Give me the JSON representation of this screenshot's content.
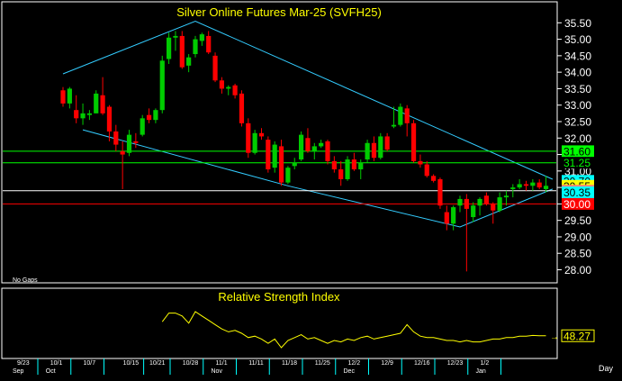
{
  "chart_data": [
    {
      "type": "candlestick",
      "title": "Silver Online Futures Mar-25  (SVFH25)",
      "note": "No Gaps",
      "y_ticks": [
        "35.50",
        "35.00",
        "34.50",
        "34.00",
        "33.50",
        "33.00",
        "32.50",
        "32.00",
        "31.50",
        "31.00",
        "30.50",
        "30.00",
        "29.50",
        "29.00",
        "28.50",
        "28.00"
      ],
      "ylim": [
        27.85,
        35.7
      ],
      "grid": false,
      "x_tick_labels": [
        "9/23",
        "10/1",
        "10/7",
        "10/15",
        "10/21",
        "10/28",
        "11/1",
        "11/11",
        "11/18",
        "11/25",
        "12/2",
        "12/9",
        "12/16",
        "12/23",
        "1/2"
      ],
      "x_tick_index": [
        0,
        5,
        10,
        16,
        20,
        25,
        30,
        35,
        40,
        45,
        50,
        55,
        60,
        65,
        70
      ],
      "month_labels": [
        "Sep",
        "Oct",
        "Nov",
        "Dec",
        "Jan"
      ],
      "month_index": [
        0,
        5,
        30,
        50,
        70
      ],
      "x_axis_unit": "Day",
      "candles": [
        {
          "o": 33.45,
          "h": 33.55,
          "l": 32.95,
          "c": 33.05
        },
        {
          "o": 33.05,
          "h": 33.55,
          "l": 32.9,
          "c": 33.5
        },
        {
          "o": 32.85,
          "h": 33.3,
          "l": 32.45,
          "c": 32.6
        },
        {
          "o": 32.6,
          "h": 33.05,
          "l": 32.4,
          "c": 32.75
        },
        {
          "o": 32.7,
          "h": 32.85,
          "l": 32.55,
          "c": 32.75
        },
        {
          "o": 32.75,
          "h": 33.45,
          "l": 32.75,
          "c": 33.35
        },
        {
          "o": 33.3,
          "h": 33.85,
          "l": 32.7,
          "c": 32.75
        },
        {
          "o": 32.95,
          "h": 33.0,
          "l": 31.9,
          "c": 32.2
        },
        {
          "o": 32.2,
          "h": 32.4,
          "l": 31.6,
          "c": 31.8
        },
        {
          "o": 31.6,
          "h": 31.9,
          "l": 30.45,
          "c": 31.5
        },
        {
          "o": 31.55,
          "h": 32.25,
          "l": 31.45,
          "c": 32.1
        },
        {
          "o": 31.9,
          "h": 32.15,
          "l": 31.7,
          "c": 31.85
        },
        {
          "o": 32.1,
          "h": 32.7,
          "l": 32.05,
          "c": 32.6
        },
        {
          "o": 32.7,
          "h": 32.9,
          "l": 32.45,
          "c": 32.55
        },
        {
          "o": 32.55,
          "h": 32.9,
          "l": 32.45,
          "c": 32.85
        },
        {
          "o": 32.85,
          "h": 34.5,
          "l": 32.75,
          "c": 34.35
        },
        {
          "o": 34.4,
          "h": 35.2,
          "l": 34.25,
          "c": 35.05
        },
        {
          "o": 35.05,
          "h": 35.25,
          "l": 34.65,
          "c": 35.1
        },
        {
          "o": 35.1,
          "h": 35.25,
          "l": 34.1,
          "c": 34.15
        },
        {
          "o": 34.2,
          "h": 34.55,
          "l": 34.0,
          "c": 34.45
        },
        {
          "o": 34.55,
          "h": 35.1,
          "l": 34.45,
          "c": 35.0
        },
        {
          "o": 34.95,
          "h": 35.2,
          "l": 34.8,
          "c": 35.15
        },
        {
          "o": 35.1,
          "h": 35.25,
          "l": 34.55,
          "c": 34.6
        },
        {
          "o": 34.5,
          "h": 34.6,
          "l": 33.7,
          "c": 33.75
        },
        {
          "o": 33.75,
          "h": 33.85,
          "l": 33.35,
          "c": 33.5
        },
        {
          "o": 33.5,
          "h": 33.6,
          "l": 33.3,
          "c": 33.55
        },
        {
          "o": 33.6,
          "h": 33.65,
          "l": 33.2,
          "c": 33.3
        },
        {
          "o": 33.35,
          "h": 33.45,
          "l": 32.35,
          "c": 32.45
        },
        {
          "o": 32.45,
          "h": 32.6,
          "l": 31.4,
          "c": 31.55
        },
        {
          "o": 31.55,
          "h": 32.25,
          "l": 31.5,
          "c": 32.15
        },
        {
          "o": 32.15,
          "h": 32.3,
          "l": 31.95,
          "c": 32.05
        },
        {
          "o": 31.95,
          "h": 32.05,
          "l": 30.95,
          "c": 31.05
        },
        {
          "o": 31.1,
          "h": 31.9,
          "l": 30.95,
          "c": 31.8
        },
        {
          "o": 31.75,
          "h": 31.95,
          "l": 30.55,
          "c": 30.65
        },
        {
          "o": 30.65,
          "h": 31.15,
          "l": 30.6,
          "c": 31.1
        },
        {
          "o": 31.15,
          "h": 31.4,
          "l": 31.05,
          "c": 31.25
        },
        {
          "o": 31.35,
          "h": 32.2,
          "l": 31.3,
          "c": 32.1
        },
        {
          "o": 32.0,
          "h": 32.3,
          "l": 31.55,
          "c": 31.6
        },
        {
          "o": 31.6,
          "h": 31.85,
          "l": 31.35,
          "c": 31.75
        },
        {
          "o": 31.75,
          "h": 31.95,
          "l": 31.7,
          "c": 31.85
        },
        {
          "o": 31.9,
          "h": 31.95,
          "l": 31.2,
          "c": 31.3
        },
        {
          "o": 31.3,
          "h": 31.45,
          "l": 30.95,
          "c": 31.05
        },
        {
          "o": 31.05,
          "h": 31.3,
          "l": 30.55,
          "c": 30.75
        },
        {
          "o": 30.75,
          "h": 31.45,
          "l": 30.7,
          "c": 31.35
        },
        {
          "o": 31.35,
          "h": 31.55,
          "l": 31.0,
          "c": 31.05
        },
        {
          "o": 31.05,
          "h": 31.35,
          "l": 30.75,
          "c": 31.25
        },
        {
          "o": 31.35,
          "h": 31.95,
          "l": 31.25,
          "c": 31.85
        },
        {
          "o": 31.85,
          "h": 32.05,
          "l": 31.3,
          "c": 31.4
        },
        {
          "o": 31.4,
          "h": 32.15,
          "l": 31.35,
          "c": 32.05
        },
        {
          "o": 32.05,
          "h": 32.15,
          "l": 31.6,
          "c": 31.65
        },
        {
          "o": 32.35,
          "h": 32.95,
          "l": 32.3,
          "c": 32.4
        },
        {
          "o": 32.4,
          "h": 33.05,
          "l": 32.35,
          "c": 32.95
        },
        {
          "o": 32.9,
          "h": 33.0,
          "l": 32.05,
          "c": 32.45
        },
        {
          "o": 32.45,
          "h": 32.55,
          "l": 31.25,
          "c": 31.3
        },
        {
          "o": 31.3,
          "h": 31.5,
          "l": 31.1,
          "c": 31.2
        },
        {
          "o": 31.2,
          "h": 31.3,
          "l": 30.8,
          "c": 30.85
        },
        {
          "o": 30.85,
          "h": 30.9,
          "l": 30.65,
          "c": 30.7
        },
        {
          "o": 30.75,
          "h": 30.8,
          "l": 29.85,
          "c": 29.95
        },
        {
          "o": 29.75,
          "h": 29.95,
          "l": 29.2,
          "c": 29.4
        },
        {
          "o": 29.4,
          "h": 29.95,
          "l": 29.2,
          "c": 29.9
        },
        {
          "o": 29.95,
          "h": 30.25,
          "l": 29.75,
          "c": 30.15
        },
        {
          "o": 30.15,
          "h": 30.3,
          "l": 27.95,
          "c": 29.85
        },
        {
          "o": 29.6,
          "h": 30.05,
          "l": 29.45,
          "c": 29.95
        },
        {
          "o": 29.95,
          "h": 30.2,
          "l": 29.65,
          "c": 30.15
        },
        {
          "o": 30.25,
          "h": 30.35,
          "l": 29.95,
          "c": 30.0
        },
        {
          "o": 30.0,
          "h": 30.05,
          "l": 29.4,
          "c": 29.8
        },
        {
          "o": 29.8,
          "h": 30.35,
          "l": 29.75,
          "c": 30.2
        },
        {
          "o": 30.2,
          "h": 30.4,
          "l": 29.95,
          "c": 30.25
        },
        {
          "o": 30.45,
          "h": 30.6,
          "l": 30.2,
          "c": 30.5
        },
        {
          "o": 30.5,
          "h": 30.75,
          "l": 30.45,
          "c": 30.6
        },
        {
          "o": 30.6,
          "h": 30.7,
          "l": 30.4,
          "c": 30.55
        },
        {
          "o": 30.55,
          "h": 30.75,
          "l": 30.4,
          "c": 30.65
        },
        {
          "o": 30.65,
          "h": 30.75,
          "l": 30.45,
          "c": 30.5
        },
        {
          "o": 30.45,
          "h": 30.85,
          "l": 30.35,
          "c": 30.55
        }
      ],
      "horizontal_levels": [
        {
          "label": "31.60",
          "value": 31.6,
          "color": "#00ff00",
          "label_bg": "#00ff00",
          "label_fg": "#000000"
        },
        {
          "label": "31.25",
          "value": 31.25,
          "color": "#00ff00",
          "label_bg": "",
          "label_fg": "#00ff00"
        },
        {
          "label": "30.70",
          "value": 30.7,
          "color": "",
          "label_bg": "#00ffff",
          "label_fg": "#000000"
        },
        {
          "label": "30.55",
          "value": 30.55,
          "color": "",
          "label_bg": "#ffff00",
          "label_fg": "#000000"
        },
        {
          "label": "30.40",
          "value": 30.4,
          "color": "#ffffff",
          "label_bg": "#ff8080",
          "label_fg": "#000000"
        },
        {
          "label": "30.35",
          "value": 30.35,
          "color": "",
          "label_bg": "#00ffff",
          "label_fg": "#000000"
        },
        {
          "label": "30.00",
          "value": 30.0,
          "color": "#ff0000",
          "label_bg": "#ff0000",
          "label_fg": "#ffffff"
        }
      ],
      "trendlines": [
        {
          "color": "#33ccff",
          "points": [
            [
              0,
              33.95
            ],
            [
              20,
              35.55
            ],
            [
              74,
              30.75
            ]
          ]
        },
        {
          "color": "#33ccff",
          "points": [
            [
              3,
              32.25
            ],
            [
              34,
              30.55
            ],
            [
              60,
              29.3
            ],
            [
              74,
              30.45
            ]
          ]
        }
      ],
      "colors": {
        "up": "#00cc00",
        "down": "#ff0000",
        "axis": "#ffffff",
        "background": "#000000"
      }
    },
    {
      "type": "line",
      "title": "Relative Strength Index",
      "series": [
        {
          "color": "#ffff00",
          "values": [
            null,
            null,
            null,
            null,
            null,
            null,
            null,
            null,
            null,
            null,
            null,
            null,
            null,
            null,
            null,
            58,
            64,
            64,
            62,
            57,
            65,
            62,
            59,
            56,
            53,
            51,
            52,
            50,
            47,
            48,
            46,
            43,
            46,
            40,
            45,
            47,
            49,
            46,
            47,
            45,
            43,
            45,
            44,
            46,
            45,
            47,
            48,
            46,
            47,
            48,
            49,
            50,
            56,
            51,
            48,
            47,
            47,
            46,
            45,
            45,
            44,
            45,
            44,
            44,
            45,
            46,
            46,
            47,
            47,
            48,
            48,
            48.5,
            48.3,
            48.27
          ]
        }
      ],
      "last_label": "48.27",
      "ylim": [
        35,
        70
      ]
    }
  ],
  "footer": {
    "period_label": "Day"
  }
}
